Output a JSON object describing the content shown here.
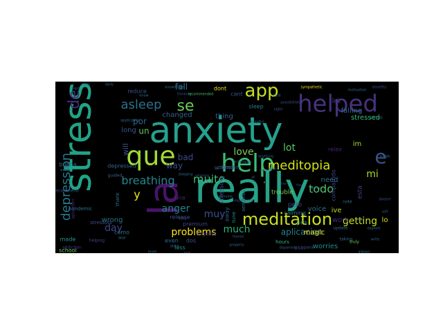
{
  "colors": {
    "frame_background": "#ffffff",
    "cloud_background": "#000000",
    "palette": [
      "#440154",
      "#46327e",
      "#365c8d",
      "#277f8e",
      "#1fa187",
      "#4ac16d",
      "#a0da39",
      "#fde725"
    ]
  },
  "words": [
    {
      "text": "anxiety",
      "size": 1.0,
      "color": "#25a18e",
      "vertical": false
    },
    {
      "text": "really",
      "size": 0.96,
      "color": "#26a288",
      "vertical": false
    },
    {
      "text": "stress",
      "size": 0.92,
      "color": "#20a386",
      "vertical": true
    },
    {
      "text": "la",
      "size": 0.88,
      "color": "#471469",
      "vertical": true
    },
    {
      "text": "helped",
      "size": 0.62,
      "color": "#46327e",
      "vertical": false
    },
    {
      "text": "help",
      "size": 0.66,
      "color": "#3dbc74",
      "vertical": false
    },
    {
      "text": "que",
      "size": 0.66,
      "color": "#a0da39",
      "vertical": false
    },
    {
      "text": "e",
      "size": 0.6,
      "color": "#3b528b",
      "vertical": false
    },
    {
      "text": "meditation",
      "size": 0.5,
      "color": "#cae11f",
      "vertical": false
    },
    {
      "text": "app",
      "size": 0.48,
      "color": "#c5e021",
      "vertical": false
    },
    {
      "text": "de",
      "size": 0.46,
      "color": "#472d7b",
      "vertical": true
    },
    {
      "text": "se",
      "size": 0.42,
      "color": "#6ccd5a",
      "vertical": false
    },
    {
      "text": "asleep",
      "size": 0.36,
      "color": "#2c718e",
      "vertical": false
    },
    {
      "text": "meditopia",
      "size": 0.38,
      "color": "#d2e21b",
      "vertical": false
    },
    {
      "text": "depression",
      "size": 0.34,
      "color": "#2a788e",
      "vertical": true
    },
    {
      "text": "breathing",
      "size": 0.32,
      "color": "#24878e",
      "vertical": false
    },
    {
      "text": "muito",
      "size": 0.3,
      "color": "#3fbc73",
      "vertical": false
    },
    {
      "text": "lot",
      "size": 0.3,
      "color": "#58c765",
      "vertical": false
    },
    {
      "text": "mi",
      "size": 0.3,
      "color": "#a8db34",
      "vertical": false
    },
    {
      "text": "todo",
      "size": 0.32,
      "color": "#4ec36b",
      "vertical": false
    },
    {
      "text": "getting",
      "size": 0.3,
      "color": "#c8e020",
      "vertical": false
    },
    {
      "text": "muy",
      "size": 0.3,
      "color": "#3b528b",
      "vertical": false
    },
    {
      "text": "much",
      "size": 0.28,
      "color": "#2fb47c",
      "vertical": false
    },
    {
      "text": "day",
      "size": 0.28,
      "color": "#404688",
      "vertical": false
    },
    {
      "text": "y",
      "size": 0.36,
      "color": "#f1e51d",
      "vertical": false
    },
    {
      "text": "problems",
      "size": 0.28,
      "color": "#fde725",
      "vertical": false
    },
    {
      "text": "anger",
      "size": 0.26,
      "color": "#25838e",
      "vertical": false
    },
    {
      "text": "love",
      "size": 0.26,
      "color": "#7ad151",
      "vertical": false
    },
    {
      "text": "bad",
      "size": 0.26,
      "color": "#3e4a89",
      "vertical": false
    },
    {
      "text": "way",
      "size": 0.26,
      "color": "#3e4a89",
      "vertical": false
    },
    {
      "text": "aplicacion",
      "size": 0.24,
      "color": "#26828e",
      "vertical": false
    },
    {
      "text": "fall",
      "size": 0.22,
      "color": "#2c728e",
      "vertical": false
    },
    {
      "text": "un",
      "size": 0.22,
      "color": "#65cb5e",
      "vertical": false
    },
    {
      "text": "por",
      "size": 0.22,
      "color": "#32648e",
      "vertical": false
    },
    {
      "text": "will",
      "size": 0.22,
      "color": "#3c4f8a",
      "vertical": true
    },
    {
      "text": "long",
      "size": 0.2,
      "color": "#37588c",
      "vertical": false
    },
    {
      "text": "changed",
      "size": 0.2,
      "color": "#33638d",
      "vertical": false
    },
    {
      "text": "thing",
      "size": 0.2,
      "color": "#34618d",
      "vertical": false
    },
    {
      "text": "need",
      "size": 0.2,
      "color": "#2c728e",
      "vertical": false
    },
    {
      "text": "voice",
      "size": 0.2,
      "color": "#2d708e",
      "vertical": false
    },
    {
      "text": "wrong",
      "size": 0.2,
      "color": "#2a768e",
      "vertical": false
    },
    {
      "text": "ive",
      "size": 0.2,
      "color": "#bddf26",
      "vertical": false
    },
    {
      "text": "im",
      "size": 0.2,
      "color": "#a2da37",
      "vertical": false
    },
    {
      "text": "lo",
      "size": 0.2,
      "color": "#dde318",
      "vertical": false
    },
    {
      "text": "work",
      "size": 0.2,
      "color": "#482878",
      "vertical": false
    },
    {
      "text": "worries",
      "size": 0.18,
      "color": "#228b8d",
      "vertical": false
    },
    {
      "text": "stressed",
      "size": 0.18,
      "color": "#35b779",
      "vertical": false
    },
    {
      "text": "let",
      "size": 0.18,
      "color": "#443a83",
      "vertical": false
    },
    {
      "text": "falling",
      "size": 0.18,
      "color": "#31688e",
      "vertical": false
    },
    {
      "text": "buena",
      "size": 0.16,
      "color": "#2e6f8e",
      "vertical": false
    },
    {
      "text": "reduce",
      "size": 0.16,
      "color": "#3a548c",
      "vertical": false
    },
    {
      "text": "dont",
      "size": 0.16,
      "color": "#f1e51d",
      "vertical": false
    },
    {
      "text": "cant",
      "size": 0.16,
      "color": "#3a548c",
      "vertical": false
    },
    {
      "text": "sleep",
      "size": 0.16,
      "color": "#287c8e",
      "vertical": false
    },
    {
      "text": "premium",
      "size": 0.16,
      "color": "#404588",
      "vertical": false
    },
    {
      "text": "release",
      "size": 0.16,
      "color": "#3d4d8a",
      "vertical": false
    },
    {
      "text": "depressed",
      "size": 0.16,
      "color": "#33638d",
      "vertical": false
    },
    {
      "text": "anyone",
      "size": 0.16,
      "color": "#453581",
      "vertical": false
    },
    {
      "text": "less",
      "size": 0.16,
      "color": "#1f968b",
      "vertical": false
    },
    {
      "text": "dos",
      "size": 0.16,
      "color": "#3b528b",
      "vertical": false
    },
    {
      "text": "even",
      "size": 0.16,
      "color": "#2f6c8e",
      "vertical": false
    },
    {
      "text": "como",
      "size": 0.16,
      "color": "#2a788e",
      "vertical": false
    },
    {
      "text": "made",
      "size": 0.16,
      "color": "#1f9e89",
      "vertical": false
    },
    {
      "text": "school",
      "size": 0.14,
      "color": "#6ccd5a",
      "vertical": false
    },
    {
      "text": "stressing",
      "size": 0.16,
      "color": "#3b528b",
      "vertical": true
    },
    {
      "text": "away",
      "size": 0.14,
      "color": "#365c8d",
      "vertical": true
    },
    {
      "text": "una",
      "size": 0.16,
      "color": "#482677",
      "vertical": false
    },
    {
      "text": "pero",
      "size": 0.16,
      "color": "#404588",
      "vertical": false
    },
    {
      "text": "trouble",
      "size": 0.16,
      "color": "#7ad151",
      "vertical": false
    },
    {
      "text": "calming",
      "size": 0.14,
      "color": "#2c728e",
      "vertical": false
    },
    {
      "text": "magic",
      "size": 0.16,
      "color": "#fde725",
      "vertical": false
    },
    {
      "text": "pra",
      "size": 0.16,
      "color": "#277f8e",
      "vertical": false
    },
    {
      "text": "relax",
      "size": 0.14,
      "color": "#482475",
      "vertical": false
    },
    {
      "text": "compartido",
      "size": 0.14,
      "color": "#3e4989",
      "vertical": true
    },
    {
      "text": "esta",
      "size": 0.14,
      "color": "#3f4788",
      "vertical": true
    },
    {
      "text": "semanas",
      "size": 0.12,
      "color": "#2a788e",
      "vertical": true
    },
    {
      "text": "tune",
      "size": 0.12,
      "color": "#21918c",
      "vertical": true
    },
    {
      "text": "hours",
      "size": 0.12,
      "color": "#31b57b",
      "vertical": false
    },
    {
      "text": "use",
      "size": 0.14,
      "color": "#3e4989",
      "vertical": false
    },
    {
      "text": "pandemic",
      "size": 0.12,
      "color": "#2b758e",
      "vertical": false
    },
    {
      "text": "aplicativo",
      "size": 0.12,
      "color": "#472a7a",
      "vertical": true
    },
    {
      "text": "addiction",
      "size": 0.1,
      "color": "#453882",
      "vertical": false
    },
    {
      "text": "stressors",
      "size": 0.12,
      "color": "#3c508b",
      "vertical": false
    },
    {
      "text": "thank",
      "size": 0.12,
      "color": "#2b758e",
      "vertical": true
    },
    {
      "text": "helping",
      "size": 0.1,
      "color": "#3e4989",
      "vertical": false
    },
    {
      "text": "recommend",
      "size": 0.1,
      "color": "#38588c",
      "vertical": false
    },
    {
      "text": "guided",
      "size": 0.1,
      "color": "#34618d",
      "vertical": false
    },
    {
      "text": "para",
      "size": 0.1,
      "color": "#3b528b",
      "vertical": false
    },
    {
      "text": "note",
      "size": 0.1,
      "color": "#2e6e8e",
      "vertical": false
    },
    {
      "text": "update",
      "size": 0.1,
      "color": "#2e6f8e",
      "vertical": false
    },
    {
      "text": "taking",
      "size": 0.1,
      "color": "#2d708e",
      "vertical": false
    },
    {
      "text": "truly",
      "size": 0.1,
      "color": "#6ece58",
      "vertical": false
    },
    {
      "text": "motivation",
      "size": 0.08,
      "color": "#2c718e",
      "vertical": false
    },
    {
      "text": "benefits",
      "size": 0.08,
      "color": "#3b528b",
      "vertical": false
    },
    {
      "text": "control",
      "size": 0.08,
      "color": "#2c728e",
      "vertical": false
    },
    {
      "text": "single",
      "size": 0.08,
      "color": "#2a768e",
      "vertical": false
    },
    {
      "text": "experience",
      "size": 0.08,
      "color": "#3a548c",
      "vertical": false
    },
    {
      "text": "certain",
      "size": 0.08,
      "color": "#365c8d",
      "vertical": false
    },
    {
      "text": "anything",
      "size": 0.08,
      "color": "#355f8d",
      "vertical": false
    },
    {
      "text": "feared",
      "size": 0.08,
      "color": "#39568c",
      "vertical": false
    },
    {
      "text": "sleeping",
      "size": 0.08,
      "color": "#2f6c8e",
      "vertical": false
    },
    {
      "text": "relaxing",
      "size": 0.08,
      "color": "#39568c",
      "vertical": false
    },
    {
      "text": "didnt",
      "size": 0.08,
      "color": "#355f8d",
      "vertical": false
    },
    {
      "text": "level",
      "size": 0.08,
      "color": "#31688e",
      "vertical": false
    },
    {
      "text": "never",
      "size": 0.08,
      "color": "#3b528b",
      "vertical": false
    },
    {
      "text": "dopamine",
      "size": 0.08,
      "color": "#32648e",
      "vertical": false
    },
    {
      "text": "worry",
      "size": 0.08,
      "color": "#2f6c8e",
      "vertical": false
    },
    {
      "text": "properly",
      "size": 0.08,
      "color": "#33638d",
      "vertical": false
    },
    {
      "text": "genuine",
      "size": 0.08,
      "color": "#2f6b8e",
      "vertical": false
    },
    {
      "text": "time",
      "size": 0.08,
      "color": "#3b528b",
      "vertical": false
    },
    {
      "text": "know",
      "size": 0.08,
      "color": "#2d708e",
      "vertical": false
    },
    {
      "text": "mindful",
      "size": 0.08,
      "color": "#34618d",
      "vertical": false
    },
    {
      "text": "soft",
      "size": 0.08,
      "color": "#365c8d",
      "vertical": false
    },
    {
      "text": "doesnt",
      "size": 0.08,
      "color": "#3a548c",
      "vertical": false
    },
    {
      "text": "always",
      "size": 0.08,
      "color": "#2f6c8e",
      "vertical": false
    },
    {
      "text": "write",
      "size": 0.08,
      "color": "#31688e",
      "vertical": false
    },
    {
      "text": "explore",
      "size": 0.08,
      "color": "#2e6e8e",
      "vertical": false
    },
    {
      "text": "deal",
      "size": 0.08,
      "color": "#2b758e",
      "vertical": false
    },
    {
      "text": "card",
      "size": 0.08,
      "color": "#2d708e",
      "vertical": false
    },
    {
      "text": "thinking",
      "size": 0.08,
      "color": "#37598c",
      "vertical": false
    },
    {
      "text": "knowledge",
      "size": 0.08,
      "color": "#2e6f8e",
      "vertical": false
    },
    {
      "text": "daily",
      "size": 0.08,
      "color": "#32648e",
      "vertical": false
    },
    {
      "text": "calm",
      "size": 0.08,
      "color": "#34618d",
      "vertical": false
    },
    {
      "text": "application",
      "size": 0.08,
      "color": "#2c718e",
      "vertical": false
    },
    {
      "text": "recommended",
      "size": 0.06,
      "color": "#4ac16d",
      "vertical": false
    },
    {
      "text": "possibilities",
      "size": 0.06,
      "color": "#3a548c",
      "vertical": false
    },
    {
      "text": "techniques",
      "size": 0.06,
      "color": "#2f6b8e",
      "vertical": false
    },
    {
      "text": "sympathetic",
      "size": 0.06,
      "color": "#fde725",
      "vertical": false
    },
    {
      "text": "night",
      "size": 0.06,
      "color": "#39568c",
      "vertical": false
    },
    {
      "text": "hard",
      "size": 0.06,
      "color": "#2e6e8e",
      "vertical": false
    },
    {
      "text": "alot",
      "size": 0.06,
      "color": "#32648e",
      "vertical": false
    },
    {
      "text": "che",
      "size": 0.14,
      "color": "#3e4a89",
      "vertical": false
    },
    {
      "text": "go",
      "size": 0.14,
      "color": "#31688e",
      "vertical": false
    },
    {
      "text": "e",
      "size": 0.14,
      "color": "#b5de2b",
      "vertical": false
    },
    {
      "text": "weeks",
      "size": 0.06,
      "color": "#3a548c",
      "vertical": false
    },
    {
      "text": "free",
      "size": 0.06,
      "color": "#365c8d",
      "vertical": false
    },
    {
      "text": "fine",
      "size": 0.06,
      "color": "#33638d",
      "vertical": false
    },
    {
      "text": "focus",
      "size": 0.06,
      "color": "#2f6c8e",
      "vertical": false
    },
    {
      "text": "unknown",
      "size": 0.06,
      "color": "#355f8d",
      "vertical": false
    },
    {
      "text": "mind",
      "size": 0.06,
      "color": "#39568c",
      "vertical": false
    }
  ]
}
